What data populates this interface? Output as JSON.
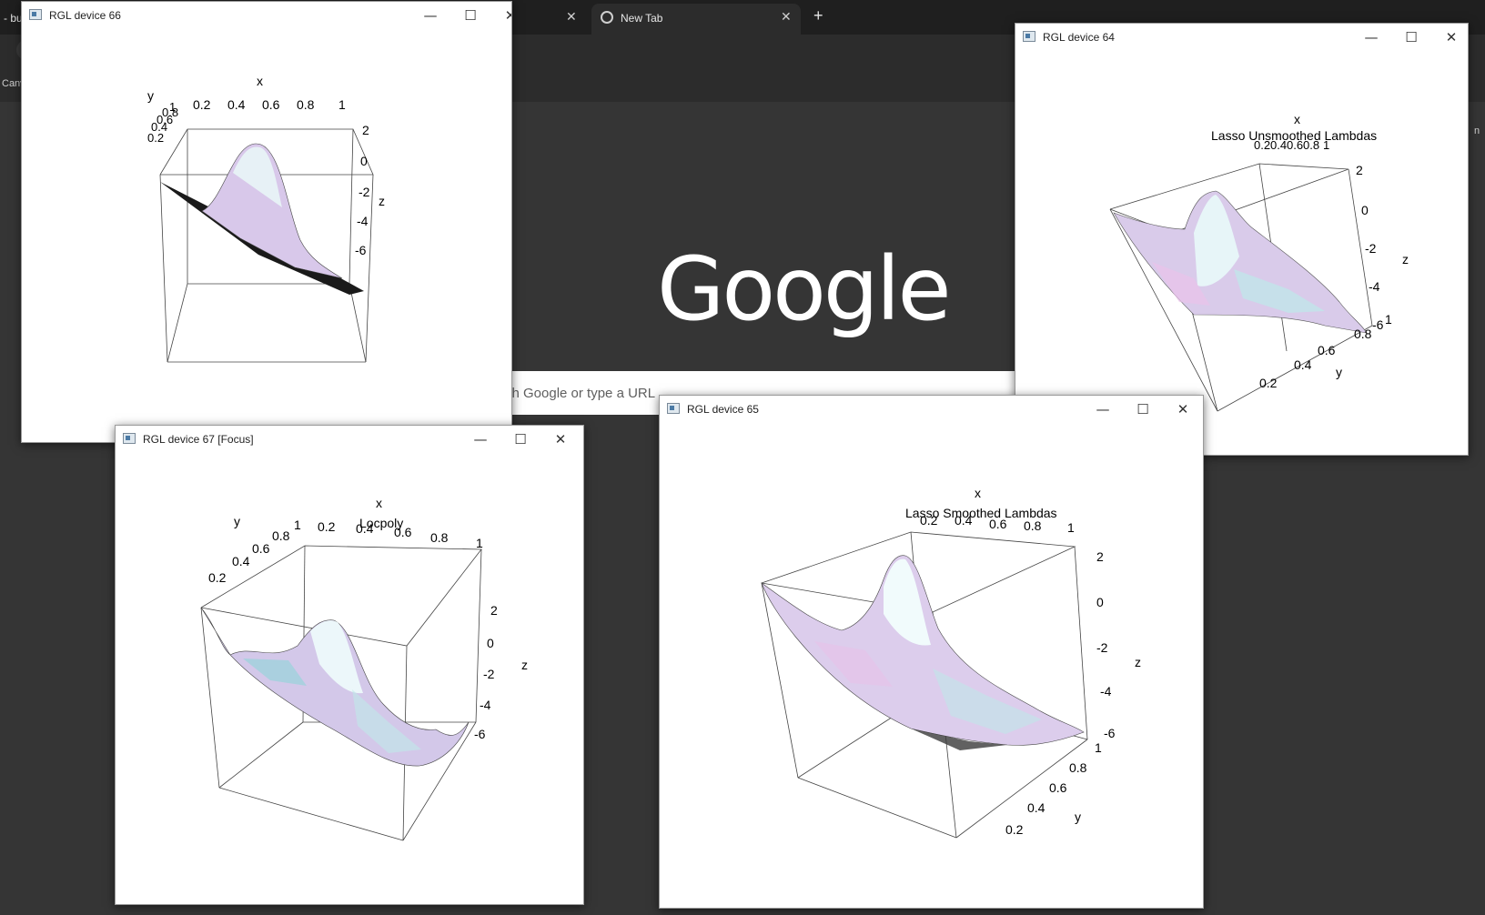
{
  "browser": {
    "tabs": [
      {
        "label": "- bu",
        "close": "✕"
      },
      {
        "label": "",
        "close": "✕"
      },
      {
        "label": "New Tab",
        "close": "✕"
      }
    ],
    "new_tab_button": "+",
    "bookmark_fragment": "Canv",
    "right_fragment": "n",
    "google_logo": "Google",
    "search_placeholder": "rch Google or type a URL"
  },
  "windows": {
    "w66": {
      "title": "RGL device 66",
      "plot_title": ""
    },
    "w64": {
      "title": "RGL device 64",
      "plot_title": "Lasso Unsmoothed Lambdas"
    },
    "w67": {
      "title": "RGL device 67 [Focus]",
      "plot_title": "Locpoly"
    },
    "w65": {
      "title": "RGL device 65",
      "plot_title": "Lasso Smoothed Lambdas"
    }
  },
  "window_buttons": {
    "minimize": "—",
    "maximize": "☐",
    "close": "✕"
  },
  "chart_data": [
    {
      "type": "surface3d",
      "title": "",
      "xlabel": "x",
      "ylabel": "y",
      "zlabel": "z",
      "x_ticks": [
        "0.2",
        "0.4",
        "0.6",
        "0.8",
        "1"
      ],
      "y_ticks": [
        "0.2",
        "0.4",
        "0.6",
        "0.8",
        "1"
      ],
      "z_ticks": [
        "2",
        "0",
        "-2",
        "-4",
        "-6"
      ]
    },
    {
      "type": "surface3d",
      "title": "Lasso Unsmoothed Lambdas",
      "xlabel": "x",
      "ylabel": "y",
      "zlabel": "z",
      "x_ticks": [
        "0.2",
        "0.4",
        "0.6",
        "0.8",
        "1"
      ],
      "y_ticks": [
        "0.2",
        "0.4",
        "0.6",
        "0.8",
        "1"
      ],
      "z_ticks": [
        "2",
        "0",
        "-2",
        "-4",
        "-6"
      ]
    },
    {
      "type": "surface3d",
      "title": "Locpoly",
      "xlabel": "x",
      "ylabel": "y",
      "zlabel": "z",
      "x_ticks": [
        "0.2",
        "0.4",
        "0.6",
        "0.8",
        "1"
      ],
      "y_ticks": [
        "0.2",
        "0.4",
        "0.6",
        "0.8",
        "1"
      ],
      "z_ticks": [
        "2",
        "0",
        "-2",
        "-4",
        "-6"
      ]
    },
    {
      "type": "surface3d",
      "title": "Lasso Smoothed Lambdas",
      "xlabel": "x",
      "ylabel": "y",
      "zlabel": "z",
      "x_ticks": [
        "0.2",
        "0.4",
        "0.6",
        "0.8",
        "1"
      ],
      "y_ticks": [
        "0.2",
        "0.4",
        "0.6",
        "0.8",
        "1"
      ],
      "z_ticks": [
        "2",
        "0",
        "-2",
        "-4",
        "-6"
      ]
    }
  ]
}
